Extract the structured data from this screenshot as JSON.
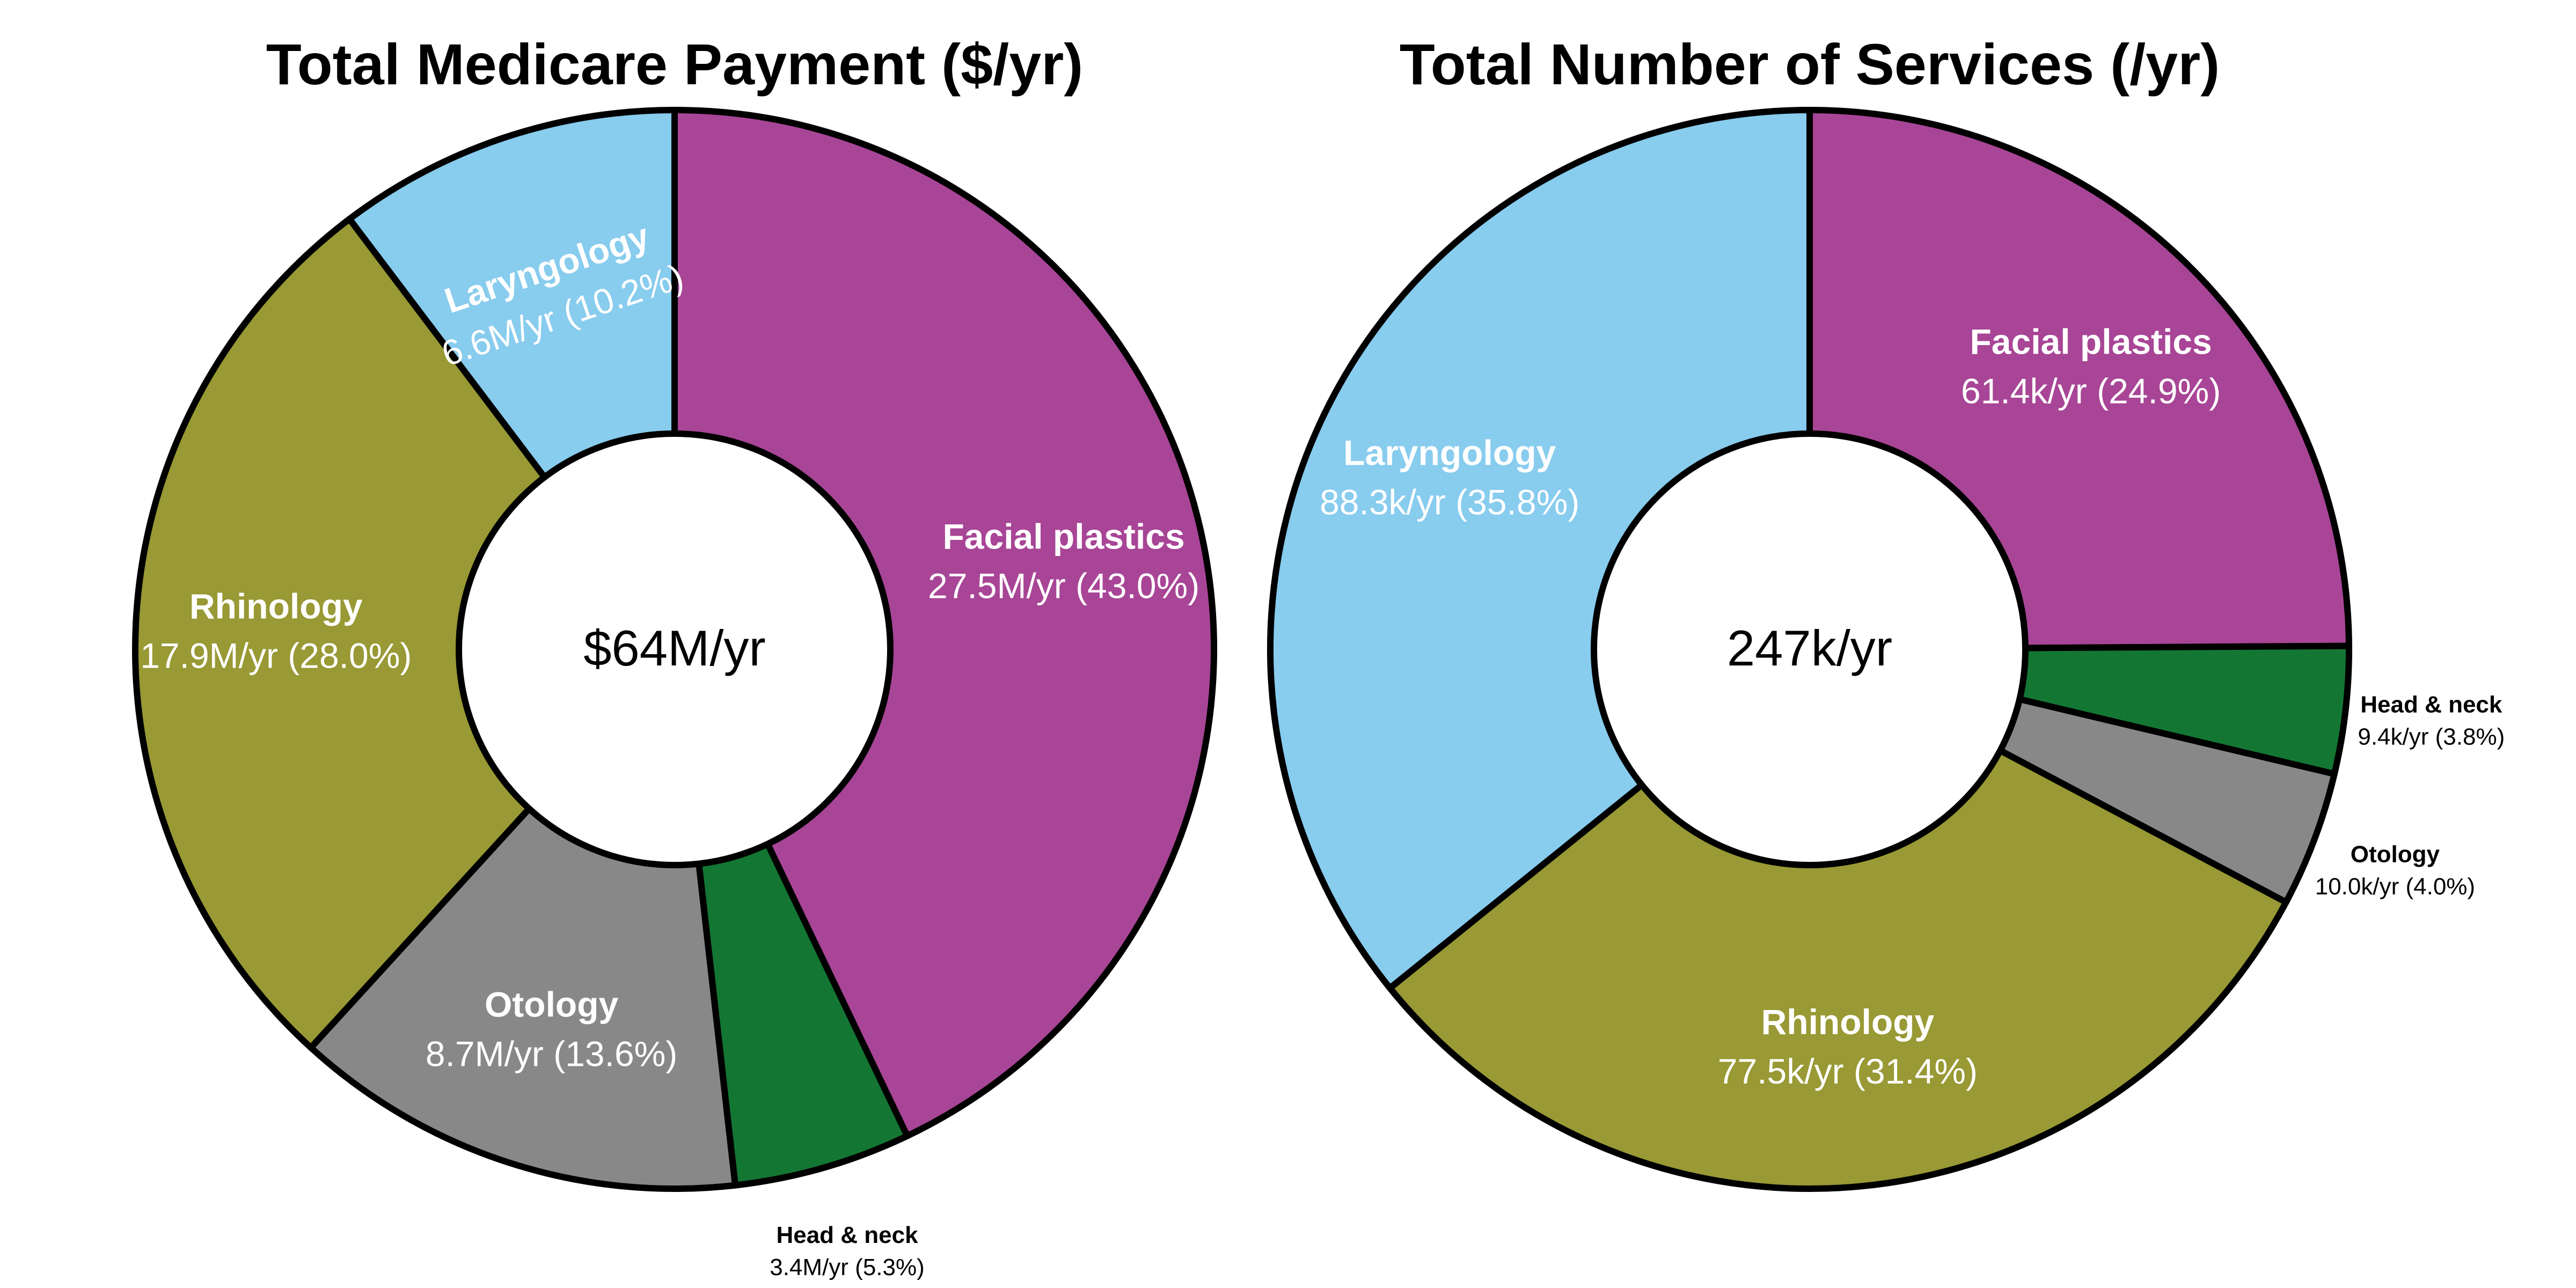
{
  "colors": {
    "Facial plastics": "#a84596",
    "Head & neck": "#137733",
    "Otology": "#888888",
    "Rhinology": "#999935",
    "Laryngology": "#88ccee",
    "edge": "#000000",
    "text_inside": "#ffffff",
    "text_outside": "#000000"
  },
  "chart_data": [
    {
      "type": "pie",
      "variant": "donut",
      "title": "Total Medicare Payment ($/yr)",
      "center_label": "$64M/yr",
      "start": "12 o'clock",
      "direction": "clockwise",
      "slices": [
        {
          "name": "Facial plastics",
          "value": 27.5,
          "percent": 43.0,
          "value_label": "27.5M/yr (43.0%)",
          "label_position": "inside"
        },
        {
          "name": "Head & neck",
          "value": 3.4,
          "percent": 5.3,
          "value_label": "3.4M/yr (5.3%)",
          "label_position": "outside"
        },
        {
          "name": "Otology",
          "value": 8.7,
          "percent": 13.6,
          "value_label": "8.7M/yr (13.6%)",
          "label_position": "inside"
        },
        {
          "name": "Rhinology",
          "value": 17.9,
          "percent": 28.0,
          "value_label": "17.9M/yr (28.0%)",
          "label_position": "inside"
        },
        {
          "name": "Laryngology",
          "value": 6.6,
          "percent": 10.2,
          "value_label": "6.6M/yr (10.2%)",
          "label_position": "inside-rotated"
        }
      ]
    },
    {
      "type": "pie",
      "variant": "donut",
      "title": "Total Number of Services (/yr)",
      "center_label": "247k/yr",
      "start": "12 o'clock",
      "direction": "clockwise",
      "slices": [
        {
          "name": "Facial plastics",
          "value": 61.4,
          "percent": 24.9,
          "value_label": "61.4k/yr (24.9%)",
          "label_position": "inside"
        },
        {
          "name": "Head & neck",
          "value": 9.4,
          "percent": 3.8,
          "value_label": "9.4k/yr (3.8%)",
          "label_position": "outside"
        },
        {
          "name": "Otology",
          "value": 10.0,
          "percent": 4.0,
          "value_label": "10.0k/yr (4.0%)",
          "label_position": "outside"
        },
        {
          "name": "Rhinology",
          "value": 77.5,
          "percent": 31.4,
          "value_label": "77.5k/yr (31.4%)",
          "label_position": "inside"
        },
        {
          "name": "Laryngology",
          "value": 88.3,
          "percent": 35.8,
          "value_label": "88.3k/yr (35.8%)",
          "label_position": "inside"
        }
      ]
    }
  ]
}
